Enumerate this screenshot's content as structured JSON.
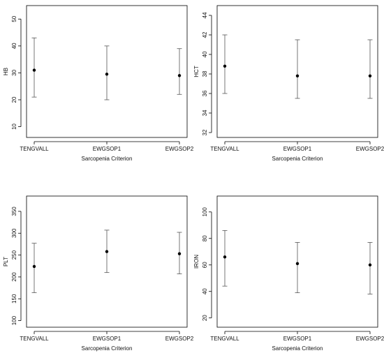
{
  "chart_data": [
    {
      "type": "scatter",
      "x_type": "categorical",
      "categories": [
        "TENGVALL",
        "EWGSOP1",
        "EWGSOP2"
      ],
      "xlabel": "Sarcopenia Criterion",
      "ylabel": "HB",
      "ylim": [
        6,
        55
      ],
      "yticks": [
        10,
        20,
        30,
        40,
        50
      ],
      "series": [
        {
          "points": [
            {
              "x": "TENGVALL",
              "y": 31,
              "lower": 21,
              "upper": 43
            },
            {
              "x": "EWGSOP1",
              "y": 29.5,
              "lower": 20,
              "upper": 40
            },
            {
              "x": "EWGSOP2",
              "y": 29,
              "lower": 22,
              "upper": 39
            }
          ]
        }
      ],
      "error_bars": true,
      "grid": false
    },
    {
      "type": "scatter",
      "x_type": "categorical",
      "categories": [
        "TENGVALL",
        "EWGSOP1",
        "EWGSOP2"
      ],
      "xlabel": "Sarcopenia Criterion",
      "ylabel": "HCT",
      "ylim": [
        31.5,
        45
      ],
      "yticks": [
        32,
        34,
        36,
        38,
        40,
        42,
        44
      ],
      "series": [
        {
          "points": [
            {
              "x": "TENGVALL",
              "y": 38.8,
              "lower": 36,
              "upper": 42
            },
            {
              "x": "EWGSOP1",
              "y": 37.8,
              "lower": 35.5,
              "upper": 41.5
            },
            {
              "x": "EWGSOP2",
              "y": 37.8,
              "lower": 35.5,
              "upper": 41.5
            }
          ]
        }
      ],
      "error_bars": true,
      "grid": false
    },
    {
      "type": "scatter",
      "x_type": "categorical",
      "categories": [
        "TENGVALL",
        "EWGSOP1",
        "EWGSOP2"
      ],
      "xlabel": "Sarcopenia Criterion",
      "ylabel": "PLT",
      "ylim": [
        85,
        385
      ],
      "yticks": [
        100,
        150,
        200,
        250,
        300,
        350
      ],
      "series": [
        {
          "points": [
            {
              "x": "TENGVALL",
              "y": 224,
              "lower": 164,
              "upper": 277
            },
            {
              "x": "EWGSOP1",
              "y": 258,
              "lower": 210,
              "upper": 307
            },
            {
              "x": "EWGSOP2",
              "y": 253,
              "lower": 207,
              "upper": 302
            }
          ]
        }
      ],
      "error_bars": true,
      "grid": false
    },
    {
      "type": "scatter",
      "x_type": "categorical",
      "categories": [
        "TENGVALL",
        "EWGSOP1",
        "EWGSOP2"
      ],
      "xlabel": "Sarcopenia Criterion",
      "ylabel": "IRON",
      "ylim": [
        13,
        112
      ],
      "yticks": [
        20,
        40,
        60,
        80,
        100
      ],
      "series": [
        {
          "points": [
            {
              "x": "TENGVALL",
              "y": 66,
              "lower": 44,
              "upper": 86
            },
            {
              "x": "EWGSOP1",
              "y": 61,
              "lower": 39,
              "upper": 77
            },
            {
              "x": "EWGSOP2",
              "y": 60,
              "lower": 38,
              "upper": 77
            }
          ]
        }
      ],
      "error_bars": true,
      "grid": false
    }
  ]
}
